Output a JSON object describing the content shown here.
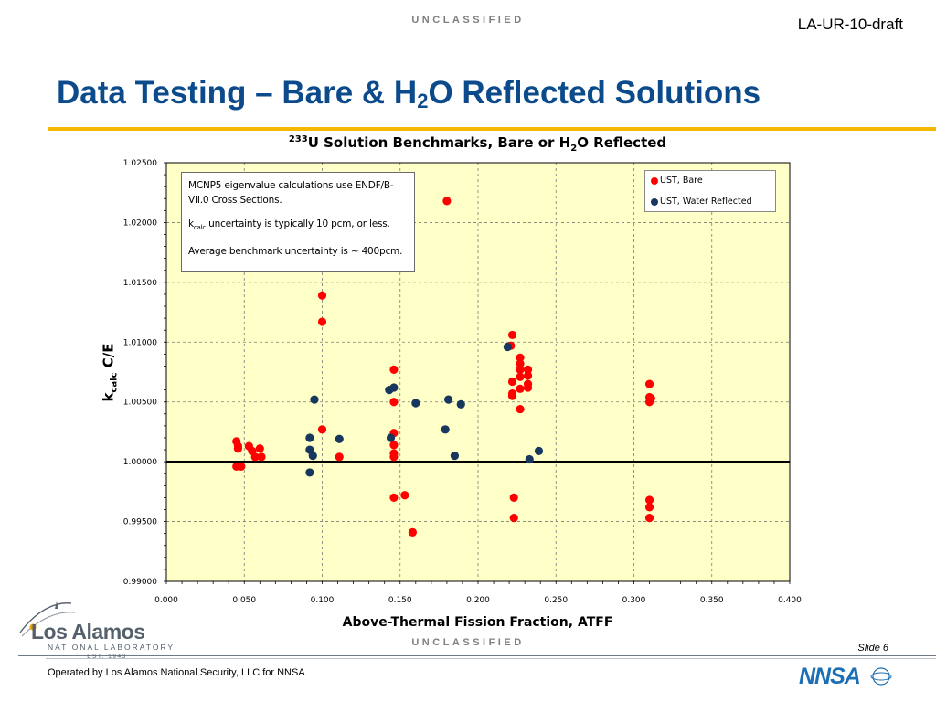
{
  "header": {
    "classification": "UNCLASSIFIED",
    "doc_id": "LA-UR-10-draft",
    "title_main": "Data Testing – Bare & H",
    "title_sub": "2",
    "title_end": "O Reflected Solutions"
  },
  "chart_data": {
    "type": "scatter",
    "title_sup": "233",
    "title_mid": "U Solution Benchmarks, Bare or H",
    "title_sub": "2",
    "title_end": "O Reflected",
    "xlabel": "Above-Thermal Fission Fraction, ATFF",
    "ylabel_main": "k",
    "ylabel_sub": "calc",
    "ylabel_end": " C/E",
    "xlim": [
      0.0,
      0.4
    ],
    "ylim": [
      0.99,
      1.025
    ],
    "x_ticks": [
      "0.000",
      "0.050",
      "0.100",
      "0.150",
      "0.200",
      "0.250",
      "0.300",
      "0.350",
      "0.400"
    ],
    "y_ticks": [
      "1.02500",
      "1.02000",
      "1.01500",
      "1.01000",
      "1.00500",
      "1.00000",
      "0.99500",
      "0.99000"
    ],
    "reference_line": 1.0,
    "grid": true,
    "legend_position": "top-right",
    "background_color": "#ffffc8",
    "series": [
      {
        "name": "UST, Bare",
        "color": "#ff0000",
        "points": [
          [
            0.045,
            1.0017
          ],
          [
            0.046,
            1.0011
          ],
          [
            0.046,
            1.0013
          ],
          [
            0.045,
            0.9996
          ],
          [
            0.048,
            0.9996
          ],
          [
            0.053,
            1.0013
          ],
          [
            0.055,
            1.0009
          ],
          [
            0.057,
            1.0004
          ],
          [
            0.06,
            1.0011
          ],
          [
            0.061,
            1.0004
          ],
          [
            0.1,
            1.0139
          ],
          [
            0.1,
            1.0117
          ],
          [
            0.1,
            1.0027
          ],
          [
            0.111,
            1.0004
          ],
          [
            0.146,
            1.0077
          ],
          [
            0.146,
            1.005
          ],
          [
            0.146,
            1.0024
          ],
          [
            0.146,
            1.0014
          ],
          [
            0.146,
            1.0007
          ],
          [
            0.146,
            1.0004
          ],
          [
            0.146,
            0.997
          ],
          [
            0.153,
            0.9972
          ],
          [
            0.158,
            0.9941
          ],
          [
            0.18,
            1.0218
          ],
          [
            0.221,
            1.0097
          ],
          [
            0.222,
            1.0106
          ],
          [
            0.222,
            1.0067
          ],
          [
            0.222,
            1.0057
          ],
          [
            0.222,
            1.0055
          ],
          [
            0.223,
            0.997
          ],
          [
            0.223,
            0.9953
          ],
          [
            0.227,
            1.0087
          ],
          [
            0.227,
            1.0082
          ],
          [
            0.227,
            1.0077
          ],
          [
            0.227,
            1.0071
          ],
          [
            0.227,
            1.0061
          ],
          [
            0.227,
            1.0044
          ],
          [
            0.232,
            1.0077
          ],
          [
            0.232,
            1.0072
          ],
          [
            0.232,
            1.0065
          ],
          [
            0.232,
            1.0062
          ],
          [
            0.31,
            1.0065
          ],
          [
            0.31,
            1.0054
          ],
          [
            0.31,
            1.005
          ],
          [
            0.311,
            1.0053
          ],
          [
            0.31,
            0.9968
          ],
          [
            0.31,
            0.9962
          ],
          [
            0.31,
            0.9953
          ]
        ]
      },
      {
        "name": "UST, Water Reflected",
        "color": "#17375e",
        "points": [
          [
            0.092,
            1.002
          ],
          [
            0.092,
            1.001
          ],
          [
            0.094,
            1.0005
          ],
          [
            0.092,
            0.9991
          ],
          [
            0.095,
            1.0052
          ],
          [
            0.111,
            1.0019
          ],
          [
            0.143,
            1.006
          ],
          [
            0.146,
            1.0062
          ],
          [
            0.144,
            1.002
          ],
          [
            0.16,
            1.0049
          ],
          [
            0.179,
            1.0027
          ],
          [
            0.181,
            1.0052
          ],
          [
            0.185,
            1.0005
          ],
          [
            0.189,
            1.0048
          ],
          [
            0.219,
            1.0096
          ],
          [
            0.233,
            1.0002
          ],
          [
            0.239,
            1.0009
          ]
        ]
      }
    ]
  },
  "notes": {
    "line1": "MCNP5 eigenvalue calculations use ENDF/B-VII.0 Cross Sections.",
    "line2_main": "k",
    "line2_sub": "calc",
    "line2_end": " uncertainty is typically 10 pcm, or less.",
    "line3": "Average benchmark uncertainty is ~ 400pcm."
  },
  "footer": {
    "classification": "UNCLASSIFIED",
    "slide_number": "Slide 6",
    "operated_by": "Operated by Los Alamos National Security, LLC for NNSA",
    "lab_name": "Los Alamos",
    "lab_subtitle": "NATIONAL LABORATORY",
    "lab_est": "EST. 1943",
    "nnsa_logo_text": "NNSA"
  },
  "colors": {
    "title_blue": "#0b4a8b",
    "gold_rule": "#f5b800",
    "classification_gray": "#7f7f7f"
  }
}
